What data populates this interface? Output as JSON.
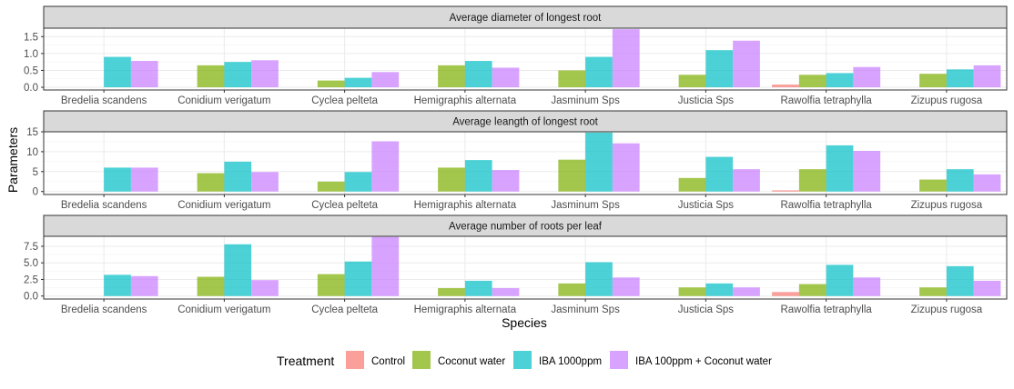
{
  "chart_data": {
    "type": "bar",
    "xlabel": "Species",
    "ylabel": "Parameters",
    "legend": {
      "title": "Treatment",
      "position": "bottom"
    },
    "categories": [
      "Bredelia scandens",
      "Conidium verigatum",
      "Cyclea pelteta",
      "Hemigraphis alternata",
      "Jasminum Sps",
      "Justicia Sps",
      "Rawolfia tetraphylla",
      "Zizupus rugosa"
    ],
    "treatments": [
      {
        "name": "Control",
        "color": "#F8766D"
      },
      {
        "name": "Coconut water",
        "color": "#7CAE00"
      },
      {
        "name": "IBA 1000ppm",
        "color": "#00BFC4"
      },
      {
        "name": "IBA 100ppm + Coconut water",
        "color": "#C77CFF"
      }
    ],
    "panels": [
      {
        "title": "Average diameter of longest root",
        "ylim": [
          -0.08,
          1.75
        ],
        "yticks": [
          0.0,
          0.5,
          1.0,
          1.5
        ],
        "ytick_labels": [
          "0.0",
          "0.5",
          "1.0",
          "1.5"
        ],
        "series": [
          {
            "name": "Control",
            "values": [
              0,
              0,
              0,
              0,
              0,
              0,
              0.08,
              0
            ]
          },
          {
            "name": "Coconut water",
            "values": [
              0,
              0.65,
              0.2,
              0.65,
              0.5,
              0.37,
              0.37,
              0.4
            ]
          },
          {
            "name": "IBA 1000ppm",
            "values": [
              0.9,
              0.75,
              0.28,
              0.78,
              0.9,
              1.1,
              0.42,
              0.53
            ]
          },
          {
            "name": "IBA 100ppm + Coconut water",
            "values": [
              0.78,
              0.8,
              0.45,
              0.58,
              1.72,
              1.38,
              0.6,
              0.65
            ]
          }
        ]
      },
      {
        "title": "Average leangth of longest root",
        "ylim": [
          -0.75,
          15.0
        ],
        "yticks": [
          0,
          5,
          10,
          15
        ],
        "ytick_labels": [
          "0",
          "5",
          "10",
          "15"
        ],
        "series": [
          {
            "name": "Control",
            "values": [
              0,
              0,
              0,
              0,
              0,
              0,
              0.3,
              0
            ]
          },
          {
            "name": "Coconut water",
            "values": [
              0,
              4.6,
              2.5,
              6.0,
              8.0,
              3.4,
              5.6,
              3.0
            ]
          },
          {
            "name": "IBA 1000ppm",
            "values": [
              6.0,
              7.5,
              4.9,
              7.9,
              14.8,
              8.7,
              11.6,
              5.6
            ]
          },
          {
            "name": "IBA 100ppm + Coconut water",
            "values": [
              6.0,
              4.9,
              12.6,
              5.4,
              12.1,
              5.6,
              10.2,
              4.3
            ]
          }
        ]
      },
      {
        "title": "Average number of roots per leaf",
        "ylim": [
          -0.45,
          9.0
        ],
        "yticks": [
          0.0,
          2.5,
          5.0,
          7.5
        ],
        "ytick_labels": [
          "0.0",
          "2.5",
          "5.0",
          "7.5"
        ],
        "series": [
          {
            "name": "Control",
            "values": [
              0,
              0,
              0,
              0,
              0,
              0,
              0.6,
              0
            ]
          },
          {
            "name": "Coconut water",
            "values": [
              0,
              2.9,
              3.3,
              1.2,
              1.9,
              1.3,
              1.8,
              1.3
            ]
          },
          {
            "name": "IBA 1000ppm",
            "values": [
              3.2,
              7.8,
              5.2,
              2.3,
              5.1,
              1.9,
              4.7,
              4.5
            ]
          },
          {
            "name": "IBA 100ppm + Coconut water",
            "values": [
              3.0,
              2.4,
              8.9,
              1.2,
              2.8,
              1.3,
              2.8,
              2.3
            ]
          }
        ]
      }
    ]
  }
}
